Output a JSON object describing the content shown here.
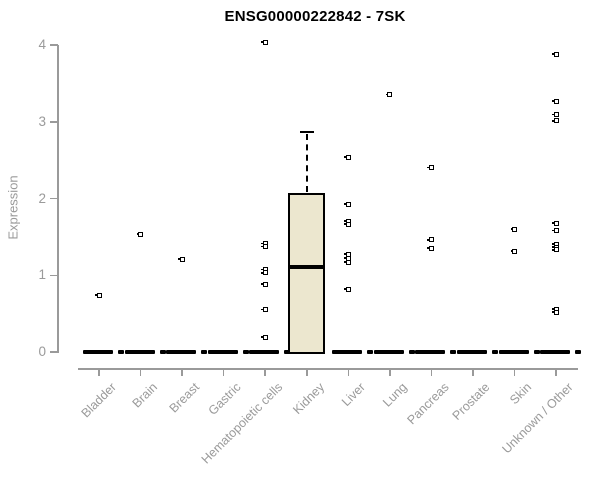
{
  "colors": {
    "title_text": "#000000",
    "axis": "#9a9a9a",
    "tick_text": "#9a9a9a",
    "box_fill": "#ece7cf",
    "box_border": "#000000",
    "marker": "#000000"
  },
  "chart_data": {
    "type": "box",
    "title": "ENSG00000222842 - 7SK",
    "xlabel": "",
    "ylabel": "Expression",
    "ylim": [
      0,
      4
    ],
    "yticks": [
      0,
      1,
      2,
      3,
      4
    ],
    "grid": false,
    "legend": null,
    "categories": [
      "Bladder",
      "Brain",
      "Breast",
      "Gastric",
      "Hematopoietic cells",
      "Kidney",
      "Liver",
      "Lung",
      "Pancreas",
      "Prostate",
      "Skin",
      "Unknown / Other"
    ],
    "series": [
      {
        "category": "Bladder",
        "box": {
          "q1": 0,
          "median": 0,
          "q3": 0,
          "whisker_low": 0,
          "whisker_high": 0
        },
        "outliers": [
          0.74
        ]
      },
      {
        "category": "Brain",
        "box": {
          "q1": 0,
          "median": 0,
          "q3": 0,
          "whisker_low": 0,
          "whisker_high": 0
        },
        "outliers": [
          1.53
        ]
      },
      {
        "category": "Breast",
        "box": {
          "q1": 0,
          "median": 0,
          "q3": 0,
          "whisker_low": 0,
          "whisker_high": 0
        },
        "outliers": [
          1.21
        ]
      },
      {
        "category": "Gastric",
        "box": {
          "q1": 0,
          "median": 0,
          "q3": 0,
          "whisker_low": 0,
          "whisker_high": 0
        },
        "outliers": []
      },
      {
        "category": "Hematopoietic cells",
        "box": {
          "q1": 0,
          "median": 0,
          "q3": 0,
          "whisker_low": 0,
          "whisker_high": 0
        },
        "outliers": [
          4.03,
          1.41,
          1.37,
          1.07,
          1.03,
          0.88,
          0.55,
          0.19
        ]
      },
      {
        "category": "Kidney",
        "box": {
          "q1": 0,
          "median": 1.11,
          "q3": 2.07,
          "whisker_low": 0,
          "whisker_high": 2.86
        },
        "outliers": []
      },
      {
        "category": "Liver",
        "box": {
          "q1": 0,
          "median": 0,
          "q3": 0,
          "whisker_low": 0,
          "whisker_high": 0
        },
        "outliers": [
          2.54,
          1.92,
          1.7,
          1.66,
          1.27,
          1.22,
          1.17,
          0.82
        ]
      },
      {
        "category": "Lung",
        "box": {
          "q1": 0,
          "median": 0,
          "q3": 0,
          "whisker_low": 0,
          "whisker_high": 0
        },
        "outliers": [
          3.35
        ]
      },
      {
        "category": "Pancreas",
        "box": {
          "q1": 0,
          "median": 0,
          "q3": 0,
          "whisker_low": 0,
          "whisker_high": 0
        },
        "outliers": [
          2.4,
          1.46,
          1.35
        ]
      },
      {
        "category": "Prostate",
        "box": {
          "q1": 0,
          "median": 0,
          "q3": 0,
          "whisker_low": 0,
          "whisker_high": 0
        },
        "outliers": []
      },
      {
        "category": "Skin",
        "box": {
          "q1": 0,
          "median": 0,
          "q3": 0,
          "whisker_low": 0,
          "whisker_high": 0
        },
        "outliers": [
          1.6,
          1.31
        ]
      },
      {
        "category": "Unknown / Other",
        "box": {
          "q1": 0,
          "median": 0,
          "q3": 0,
          "whisker_low": 0,
          "whisker_high": 0
        },
        "outliers": [
          3.88,
          3.27,
          3.09,
          3.01,
          1.68,
          1.58,
          1.4,
          1.36,
          1.33,
          0.56,
          0.52
        ]
      }
    ]
  }
}
